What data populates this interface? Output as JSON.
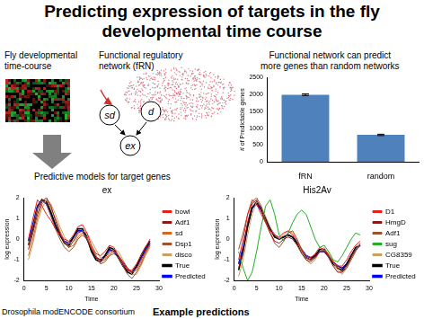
{
  "title": [
    "Predicting expression of targets in the fly",
    "developmental time course"
  ],
  "texts": {
    "timecourse": [
      "Fly developmental",
      "time-course"
    ],
    "network": [
      "Functional regulatory",
      "network (fRN)"
    ],
    "models": "Predictive models for target genes",
    "bar_caption": [
      "Functional network can predict",
      "more genes than random networks"
    ],
    "credit": "Drosophila modENCODE consortium",
    "examples": "Example predictions"
  },
  "diagram": {
    "nodes": [
      "sd",
      "d",
      "ex"
    ]
  },
  "chart_data": [
    {
      "type": "bar",
      "categories": [
        "fRN",
        "random"
      ],
      "values": [
        1990,
        800
      ],
      "errors": [
        25,
        20
      ],
      "color": "#4f81bd",
      "y_label": "# of Predictable genes",
      "ylim": [
        0,
        2500
      ],
      "yticks": [
        0,
        500,
        1000,
        1500,
        2000,
        2500
      ],
      "grid": false
    },
    {
      "type": "line",
      "title": "ex",
      "x_label": "Time",
      "y_label": "log expression",
      "x": [
        1,
        2,
        3,
        4,
        5,
        6,
        7,
        8,
        9,
        10,
        11,
        12,
        13,
        14,
        15,
        16,
        17,
        18,
        19,
        20,
        21,
        22,
        23,
        24,
        25,
        26,
        27,
        28
      ],
      "xlim": [
        0,
        30
      ],
      "xticks": [
        0,
        5,
        10,
        15,
        20,
        25,
        30
      ],
      "ylim": [
        -2,
        2
      ],
      "yticks": [
        -2,
        -1,
        0,
        1,
        2
      ],
      "grid": false,
      "legend": "right",
      "series": [
        {
          "name": "bowl",
          "color": "#e8201a",
          "values": [
            0.0,
            1.0,
            1.9,
            1.6,
            1.2,
            0.9,
            0.5,
            0.2,
            0.0,
            -0.1,
            0.2,
            0.6,
            0.7,
            0.3,
            -0.3,
            -0.7,
            -0.8,
            -0.6,
            -0.3,
            -0.4,
            -0.8,
            -1.2,
            -1.5,
            -1.5,
            -1.2,
            -0.8,
            -0.4,
            0.0
          ]
        },
        {
          "name": "Adf1",
          "color": "#8b1a1a",
          "values": [
            -0.5,
            0.3,
            1.2,
            1.8,
            2.0,
            1.6,
            0.9,
            0.3,
            -0.2,
            -0.4,
            -0.1,
            0.3,
            0.4,
            0.0,
            -0.5,
            -0.9,
            -1.0,
            -0.9,
            -0.6,
            -0.5,
            -0.8,
            -1.1,
            -1.4,
            -1.6,
            -1.4,
            -1.0,
            -0.6,
            -0.2
          ]
        },
        {
          "name": "sd",
          "color": "#d2691e",
          "values": [
            -0.8,
            0.0,
            1.0,
            1.7,
            1.9,
            1.5,
            1.0,
            0.4,
            -0.1,
            -0.4,
            -0.3,
            0.1,
            0.3,
            0.1,
            -0.4,
            -0.8,
            -1.1,
            -1.0,
            -0.7,
            -0.6,
            -0.8,
            -1.1,
            -1.4,
            -1.6,
            -1.5,
            -1.1,
            -0.7,
            -0.3
          ]
        },
        {
          "name": "Dsp1",
          "color": "#a0522d",
          "values": [
            -0.3,
            0.6,
            1.5,
            1.9,
            1.7,
            1.1,
            0.5,
            0.0,
            -0.4,
            -0.6,
            -0.4,
            0.0,
            0.2,
            0.0,
            -0.4,
            -0.8,
            -1.2,
            -1.1,
            -0.8,
            -0.7,
            -0.9,
            -1.3,
            -1.7,
            -1.9,
            -1.6,
            -1.2,
            -0.7,
            -0.3
          ]
        },
        {
          "name": "disco",
          "color": "#c8a060",
          "values": [
            -1.0,
            -0.2,
            0.8,
            1.5,
            1.9,
            1.7,
            1.2,
            0.6,
            0.1,
            -0.2,
            -0.1,
            0.2,
            0.4,
            0.3,
            -0.1,
            -0.5,
            -0.9,
            -1.0,
            -0.8,
            -0.5,
            -0.6,
            -1.0,
            -1.4,
            -1.7,
            -1.7,
            -1.3,
            -0.8,
            -0.4
          ]
        },
        {
          "name": "True",
          "color": "#000000",
          "values": [
            -0.3,
            0.5,
            1.5,
            1.9,
            1.8,
            1.3,
            0.7,
            0.2,
            -0.2,
            -0.3,
            0.1,
            0.5,
            0.5,
            0.1,
            -0.6,
            -1.0,
            -1.1,
            -0.8,
            -0.4,
            -0.5,
            -0.9,
            -1.3,
            -1.6,
            -1.7,
            -1.3,
            -0.8,
            -0.4,
            -0.1
          ]
        },
        {
          "name": "Predicted",
          "color": "#0000ff",
          "values": [
            -0.1,
            0.7,
            1.6,
            1.9,
            1.7,
            1.2,
            0.6,
            0.2,
            -0.1,
            -0.2,
            0.1,
            0.4,
            0.4,
            0.0,
            -0.5,
            -0.9,
            -1.0,
            -0.8,
            -0.5,
            -0.6,
            -0.9,
            -1.2,
            -1.5,
            -1.6,
            -1.3,
            -0.9,
            -0.5,
            -0.2
          ]
        }
      ]
    },
    {
      "type": "line",
      "title": "His2Av",
      "x_label": "Time",
      "y_label": "log expression",
      "x": [
        1,
        2,
        3,
        4,
        5,
        6,
        7,
        8,
        9,
        10,
        11,
        12,
        13,
        14,
        15,
        16,
        17,
        18,
        19,
        20,
        21,
        22,
        23,
        24,
        25,
        26,
        27,
        28
      ],
      "xlim": [
        0,
        30
      ],
      "xticks": [
        0,
        5,
        10,
        15,
        20,
        25,
        30
      ],
      "ylim": [
        -2,
        2
      ],
      "yticks": [
        -2,
        -1,
        0,
        1,
        2
      ],
      "grid": false,
      "legend": "right",
      "series": [
        {
          "name": "D1",
          "color": "#e8201a",
          "values": [
            -1.0,
            0.0,
            1.2,
            1.9,
            1.7,
            1.2,
            0.8,
            0.4,
            0.2,
            0.1,
            0.3,
            0.4,
            0.2,
            -0.1,
            -0.5,
            -0.8,
            -0.9,
            -0.7,
            -0.4,
            -0.5,
            -0.8,
            -1.1,
            -1.3,
            -1.3,
            -1.0,
            -0.6,
            -0.3,
            -0.1
          ]
        },
        {
          "name": "HmgD",
          "color": "#8b1a1a",
          "values": [
            -1.4,
            -0.5,
            0.8,
            1.7,
            1.9,
            1.4,
            0.8,
            0.3,
            -0.1,
            -0.2,
            0.0,
            0.1,
            0.0,
            -0.3,
            -0.7,
            -1.0,
            -1.1,
            -0.9,
            -0.6,
            -0.6,
            -0.9,
            -1.3,
            -1.6,
            -1.6,
            -1.3,
            -0.9,
            -0.5,
            -0.3
          ]
        },
        {
          "name": "Adf1",
          "color": "#a0522d",
          "values": [
            -0.5,
            0.3,
            1.2,
            1.8,
            2.0,
            1.6,
            0.9,
            0.3,
            -0.2,
            -0.4,
            -0.1,
            0.3,
            0.4,
            0.0,
            -0.5,
            -0.9,
            -1.0,
            -0.9,
            -0.6,
            -0.5,
            -0.8,
            -1.1,
            -1.4,
            -1.6,
            -1.4,
            -1.0,
            -0.6,
            -0.2
          ]
        },
        {
          "name": "sug",
          "color": "#22b022",
          "values": [
            -0.6,
            -1.4,
            -2.0,
            -1.6,
            -0.6,
            0.6,
            1.6,
            1.9,
            1.2,
            0.2,
            -0.1,
            0.3,
            0.8,
            1.2,
            1.4,
            1.2,
            0.6,
            0.0,
            -0.4,
            -0.3,
            -0.6,
            -1.0,
            -1.1,
            -0.8,
            -0.4,
            0.0,
            0.3,
            0.2
          ]
        },
        {
          "name": "CG8359",
          "color": "#c8a060",
          "values": [
            -1.8,
            -1.0,
            0.2,
            1.2,
            1.8,
            1.6,
            1.1,
            0.6,
            0.2,
            0.0,
            0.2,
            0.4,
            0.3,
            -0.1,
            -0.6,
            -1.0,
            -1.2,
            -1.0,
            -0.6,
            -0.4,
            -0.7,
            -1.1,
            -1.5,
            -1.7,
            -1.4,
            -0.9,
            -0.5,
            -0.2
          ]
        },
        {
          "name": "True",
          "color": "#000000",
          "values": [
            -1.5,
            -0.6,
            0.6,
            1.5,
            1.8,
            1.5,
            1.0,
            0.5,
            0.1,
            0.0,
            0.1,
            0.2,
            0.1,
            -0.2,
            -0.6,
            -0.9,
            -1.0,
            -0.8,
            -0.5,
            -0.5,
            -0.8,
            -1.2,
            -1.4,
            -1.5,
            -1.2,
            -0.8,
            -0.4,
            -0.3
          ]
        },
        {
          "name": "Predicted",
          "color": "#0000ff",
          "values": [
            -1.2,
            -0.4,
            0.7,
            1.5,
            1.7,
            1.4,
            0.9,
            0.5,
            0.2,
            0.0,
            0.1,
            0.2,
            0.1,
            -0.2,
            -0.5,
            -0.8,
            -0.9,
            -0.8,
            -0.6,
            -0.6,
            -0.8,
            -1.1,
            -1.3,
            -1.4,
            -1.2,
            -0.8,
            -0.5,
            -0.3
          ]
        }
      ]
    }
  ]
}
